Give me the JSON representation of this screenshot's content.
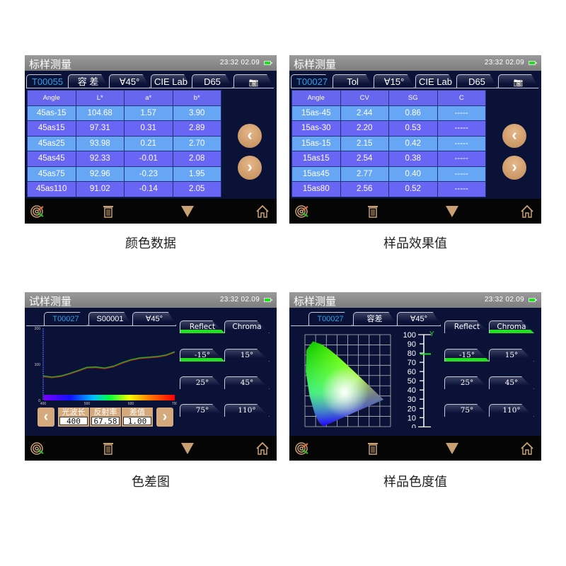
{
  "status": {
    "time": "23:32",
    "date": "02.09"
  },
  "panels": [
    {
      "title": "标样测量",
      "caption": "颜色数据",
      "tabs": [
        "T00055",
        "容 差",
        "∀45°",
        "CIE Lab",
        "D65"
      ],
      "table": {
        "headers": [
          "Angle",
          "L*",
          "a*",
          "b*"
        ],
        "rows": [
          [
            "45as-15",
            "104.68",
            "1.57",
            "3.90"
          ],
          [
            "45as15",
            "97.31",
            "0.31",
            "2.89"
          ],
          [
            "45as25",
            "93.98",
            "0.21",
            "2.70"
          ],
          [
            "45as45",
            "92.33",
            "-0.01",
            "2.08"
          ],
          [
            "45as75",
            "92.96",
            "-0.23",
            "1.95"
          ],
          [
            "45as110",
            "91.02",
            "-0.14",
            "2.05"
          ]
        ]
      }
    },
    {
      "title": "标样测量",
      "caption": "样品效果值",
      "tabs": [
        "T00027",
        "Tol",
        "∀15°",
        "CIE Lab",
        "D65"
      ],
      "table": {
        "headers": [
          "Angle",
          "CV",
          "SG",
          "C"
        ],
        "rows": [
          [
            "15as-45",
            "2.44",
            "0.86",
            "-----"
          ],
          [
            "15as-30",
            "2.20",
            "0.53",
            "-----"
          ],
          [
            "15as-15",
            "2.15",
            "0.42",
            "-----"
          ],
          [
            "15as15",
            "2.54",
            "0.38",
            "-----"
          ],
          [
            "15as45",
            "2.77",
            "0.40",
            "-----"
          ],
          [
            "15as80",
            "2.56",
            "0.52",
            "-----"
          ]
        ]
      }
    },
    {
      "title": "试样测量",
      "caption": "色差图",
      "tabs": [
        "T00027",
        "S00001",
        "∀45°"
      ],
      "mode_buttons": [
        "Reflect",
        "Chroma"
      ],
      "active_mode": "Reflect",
      "angle_buttons": [
        "-15°",
        "15°",
        "25°",
        "45°",
        "75°",
        "110°"
      ],
      "active_angle": "-15°",
      "readout": {
        "labels": [
          "光波长",
          "反射率",
          "差值"
        ],
        "values": [
          "400",
          "67.58",
          "1.00"
        ]
      }
    },
    {
      "title": "标样测量",
      "caption": "样品色度值",
      "tabs": [
        "T00027",
        "容差",
        "∀45°"
      ],
      "mode_buttons": [
        "Reflect",
        "Chroma"
      ],
      "active_mode": "Chroma",
      "angle_buttons": [
        "-15°",
        "15°",
        "25°",
        "45°",
        "75°",
        "110°"
      ],
      "active_angle": "-15°",
      "y_scale": {
        "label": "Y",
        "ticks": [
          "100",
          "90",
          "80",
          "70",
          "60",
          "50",
          "40",
          "30",
          "20",
          "10",
          "0"
        ],
        "marker_value": 79
      }
    }
  ],
  "chart_data": [
    {
      "type": "line",
      "x": [
        400,
        420,
        440,
        460,
        480,
        500,
        520,
        540,
        560,
        580,
        600,
        620,
        640,
        660,
        680,
        700
      ],
      "series": [
        {
          "values": [
            68,
            65,
            68,
            75,
            83,
            92,
            93,
            90,
            95,
            105,
            113,
            118,
            120,
            122,
            126,
            135
          ],
          "color": "#22b022"
        },
        {
          "values": [
            66,
            63,
            66,
            73,
            81,
            90,
            91,
            88,
            93,
            103,
            111,
            116,
            118,
            120,
            124,
            133
          ],
          "color": "#c02020"
        }
      ],
      "xticks": [
        "400",
        "500",
        "600",
        "700"
      ],
      "yticks": [
        "0",
        "100",
        "200"
      ],
      "xlim": [
        400,
        700
      ],
      "ylim": [
        0,
        200
      ]
    }
  ],
  "colors": {
    "accent_green": "#22e022",
    "button_tan": "#d4aa7d",
    "table_blue": "#66a6f5",
    "table_violet": "#6a66f5",
    "screen_bg": "#0b1238"
  },
  "icons": [
    "target-icon",
    "trash-icon",
    "dropdown-triangle-icon",
    "home-icon",
    "camera-icon",
    "battery-icon"
  ]
}
